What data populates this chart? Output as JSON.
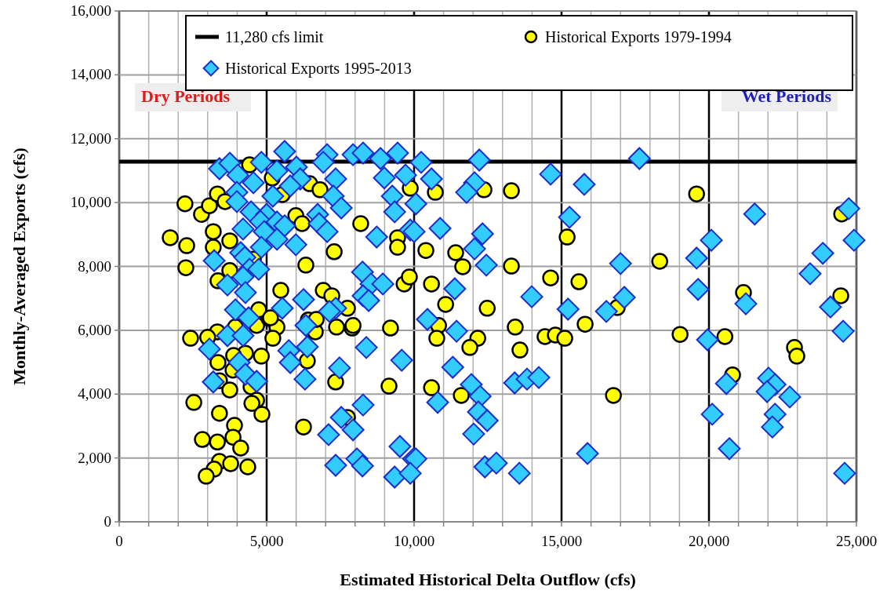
{
  "chart_data": {
    "type": "scatter",
    "xlabel": "Estimated Historical Delta Outflow (cfs)",
    "ylabel": "Monthly-Averaged Exports (cfs)",
    "xlim": [
      0,
      25000
    ],
    "ylim": [
      0,
      16000
    ],
    "xticks": [
      {
        "value": 0,
        "label": "0"
      },
      {
        "value": 1000,
        "label": null
      },
      {
        "value": 2000,
        "label": null
      },
      {
        "value": 3000,
        "label": null
      },
      {
        "value": 4000,
        "label": null
      },
      {
        "value": 5000,
        "label": "5,000"
      },
      {
        "value": 6000,
        "label": null
      },
      {
        "value": 7000,
        "label": null
      },
      {
        "value": 8000,
        "label": null
      },
      {
        "value": 9000,
        "label": null
      },
      {
        "value": 10000,
        "label": "10,000"
      },
      {
        "value": 11000,
        "label": null
      },
      {
        "value": 12000,
        "label": null
      },
      {
        "value": 13000,
        "label": null
      },
      {
        "value": 14000,
        "label": null
      },
      {
        "value": 15000,
        "label": "15,000"
      },
      {
        "value": 16000,
        "label": null
      },
      {
        "value": 17000,
        "label": null
      },
      {
        "value": 18000,
        "label": null
      },
      {
        "value": 19000,
        "label": null
      },
      {
        "value": 20000,
        "label": "20,000"
      },
      {
        "value": 21000,
        "label": null
      },
      {
        "value": 22000,
        "label": null
      },
      {
        "value": 23000,
        "label": null
      },
      {
        "value": 24000,
        "label": null
      },
      {
        "value": 25000,
        "label": "25,000"
      }
    ],
    "yticks": [
      {
        "value": 0,
        "label": "0"
      },
      {
        "value": 2000,
        "label": "2,000"
      },
      {
        "value": 4000,
        "label": "4,000"
      },
      {
        "value": 6000,
        "label": "6,000"
      },
      {
        "value": 8000,
        "label": "8,000"
      },
      {
        "value": 10000,
        "label": "10,000"
      },
      {
        "value": 12000,
        "label": "12,000"
      },
      {
        "value": 14000,
        "label": "14,000"
      },
      {
        "value": 16000,
        "label": "16,000"
      }
    ],
    "grid": true,
    "legend": "top",
    "ref_lines": [
      {
        "axis": "y",
        "value": 11280,
        "label": "11,280 cfs limit",
        "color": "#000000"
      }
    ],
    "annotations": [
      "Dry Periods",
      "Wet Periods"
    ],
    "series": [
      {
        "name": "Historical Exports 1979-1994",
        "color": "#ffff00",
        "marker": "circle",
        "x": [
          9870,
          10720,
          12370,
          13300,
          15190,
          10400,
          11410,
          11650,
          13300,
          10590,
          14630,
          15590,
          11070,
          12480,
          10830,
          10770,
          12160,
          11890,
          13430,
          13590,
          14440,
          14790,
          15110,
          15800,
          16890,
          10590,
          11600,
          16760,
          19580,
          18330,
          21170,
          19020,
          20540,
          20800,
          22900,
          22980,
          24500,
          24470,
          2420,
          3330,
          3000,
          4660,
          5080,
          5350,
          5210,
          3940,
          4280,
          3880,
          3350,
          4820,
          3860,
          3400,
          3750,
          4470,
          4660,
          4500,
          4840,
          2530,
          3400,
          3910,
          3860,
          4120,
          2820,
          3330,
          3400,
          3780,
          4360,
          3220,
          2950,
          6250,
          7340,
          9150,
          9200,
          7900,
          7370,
          6380,
          6650,
          6410,
          7740,
          1730,
          2290,
          2260,
          2230,
          2790,
          3060,
          3190,
          3190,
          3330,
          3590,
          3750,
          3750,
          3350,
          5480,
          4420,
          5190,
          5530,
          6460,
          6810,
          5990,
          6200,
          8190,
          7290,
          6330,
          6920,
          7210,
          7740,
          9440,
          9440,
          9660,
          9840,
          4730,
          5130,
          6680,
          7930,
          4550
        ],
        "values": [
          10450,
          10320,
          10400,
          10370,
          8920,
          8500,
          8430,
          7990,
          8010,
          7450,
          7640,
          7520,
          6810,
          6690,
          6150,
          5750,
          5750,
          5460,
          6100,
          5380,
          5800,
          5850,
          5750,
          6190,
          6710,
          4200,
          3960,
          3960,
          10270,
          8160,
          7180,
          5870,
          5800,
          4600,
          5460,
          5190,
          9640,
          7080,
          5750,
          5950,
          5780,
          6150,
          6370,
          6100,
          5750,
          6100,
          5280,
          5210,
          4990,
          5190,
          4750,
          4420,
          4130,
          4230,
          3810,
          3710,
          3370,
          3740,
          3400,
          3020,
          2650,
          2310,
          2580,
          2500,
          1890,
          1820,
          1720,
          1650,
          1430,
          2970,
          4380,
          4250,
          6070,
          6070,
          6100,
          5040,
          5950,
          6320,
          3270,
          8900,
          8650,
          7960,
          9960,
          9630,
          9900,
          9090,
          8600,
          10270,
          10030,
          8800,
          7870,
          7550,
          7250,
          11180,
          10770,
          10250,
          10590,
          10400,
          9590,
          9340,
          9340,
          8460,
          8040,
          7250,
          7080,
          6690,
          8900,
          8600,
          7450,
          7670,
          6640,
          6390,
          6340,
          6150,
          8230
        ]
      },
      {
        "name": "Historical Exports 1995-2013",
        "color": "#33ccff",
        "marker": "diamond",
        "x": [
          5610,
          7050,
          7930,
          8270,
          8860,
          9440,
          3400,
          3750,
          4020,
          4820,
          5350,
          6010,
          6140,
          5800,
          4550,
          3990,
          5210,
          3990,
          7340,
          6920,
          8990,
          9710,
          9260,
          9340,
          7260,
          7530,
          4470,
          5000,
          4790,
          5350,
          4200,
          5610,
          4920,
          5350,
          6730,
          6780,
          7050,
          5990,
          4820,
          8730,
          9870,
          4120,
          4260,
          3220,
          4420,
          4730,
          4200,
          3670,
          4280,
          8250,
          8540,
          8940,
          8270,
          6250,
          5530,
          3940,
          4390,
          7340,
          7130,
          6330,
          8460,
          3670,
          4200,
          3060,
          4070,
          4280,
          4660,
          3190,
          5750,
          5800,
          6380,
          6300,
          8380,
          9580,
          7470,
          8270,
          7530,
          7100,
          7930,
          9520,
          8060,
          8250,
          7340,
          9340,
          9980,
          10240,
          12210,
          14630,
          15770,
          17640,
          10590,
          12050,
          11780,
          10060,
          10000,
          10880,
          12320,
          12050,
          12450,
          15270,
          17000,
          11380,
          13990,
          15220,
          16520,
          17130,
          10450,
          11440,
          11310,
          11940,
          12240,
          13410,
          13830,
          14230,
          10800,
          12180,
          12480,
          12020,
          10060,
          12400,
          12790,
          13570,
          15880,
          9870,
          21550,
          24740,
          20080,
          24920,
          19580,
          23860,
          23430,
          19630,
          21250,
          24120,
          19950,
          24550,
          20590,
          22020,
          22240,
          21970,
          22740,
          20110,
          22240,
          22150,
          20690,
          24600
        ],
        "values": [
          11600,
          11500,
          11500,
          11550,
          11380,
          11550,
          11060,
          11230,
          10860,
          11260,
          10990,
          11110,
          10740,
          10520,
          10620,
          10320,
          10200,
          10030,
          10740,
          11260,
          10770,
          10860,
          10200,
          9710,
          10200,
          9830,
          9710,
          9630,
          9410,
          9390,
          9170,
          9270,
          9090,
          8850,
          9630,
          9340,
          9090,
          8680,
          8600,
          8920,
          9140,
          8430,
          8280,
          8180,
          7910,
          7910,
          7670,
          7420,
          7180,
          7820,
          7450,
          7450,
          7080,
          6960,
          6690,
          6640,
          6390,
          6690,
          6590,
          6150,
          6930,
          5830,
          5830,
          5410,
          4990,
          4620,
          4400,
          4380,
          5360,
          4990,
          5480,
          4470,
          5460,
          5060,
          4820,
          3660,
          3270,
          2730,
          2880,
          2360,
          1970,
          1750,
          1770,
          1400,
          1970,
          11260,
          11330,
          10890,
          10570,
          11380,
          10740,
          10620,
          10320,
          9960,
          9090,
          9190,
          9020,
          8550,
          8040,
          9540,
          8090,
          7300,
          7050,
          6660,
          6590,
          7030,
          6340,
          5970,
          4840,
          4300,
          3930,
          4350,
          4470,
          4520,
          3740,
          3440,
          3170,
          2750,
          1970,
          1720,
          1840,
          1520,
          2140,
          1520,
          9640,
          9810,
          8820,
          8820,
          8260,
          8410,
          7770,
          7280,
          6830,
          6730,
          5700,
          5970,
          4330,
          4500,
          4300,
          4080,
          3910,
          3370,
          3370,
          2970,
          2290,
          1520
        ]
      }
    ]
  }
}
